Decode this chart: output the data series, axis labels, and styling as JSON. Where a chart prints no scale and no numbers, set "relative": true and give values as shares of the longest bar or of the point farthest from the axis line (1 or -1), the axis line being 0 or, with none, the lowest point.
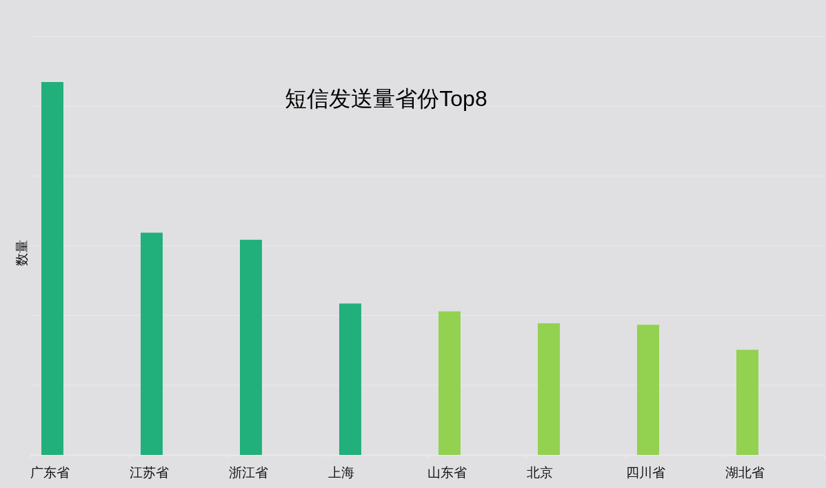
{
  "chart_data": {
    "type": "bar",
    "title": "短信发送量省份Top8",
    "ylabel": "数量",
    "categories": [
      "广东省",
      "江苏省",
      "浙江省",
      "上海",
      "山东省",
      "北京",
      "四川省",
      "湖北省"
    ],
    "values": [
      1,
      0.596,
      0.577,
      0.406,
      0.385,
      0.353,
      0.349,
      0.282
    ],
    "colors": [
      "#21b07b",
      "#21b07b",
      "#21b07b",
      "#21b07b",
      "#93d150",
      "#93d150",
      "#93d150",
      "#93d150"
    ],
    "relative": true,
    "grid": "y"
  }
}
